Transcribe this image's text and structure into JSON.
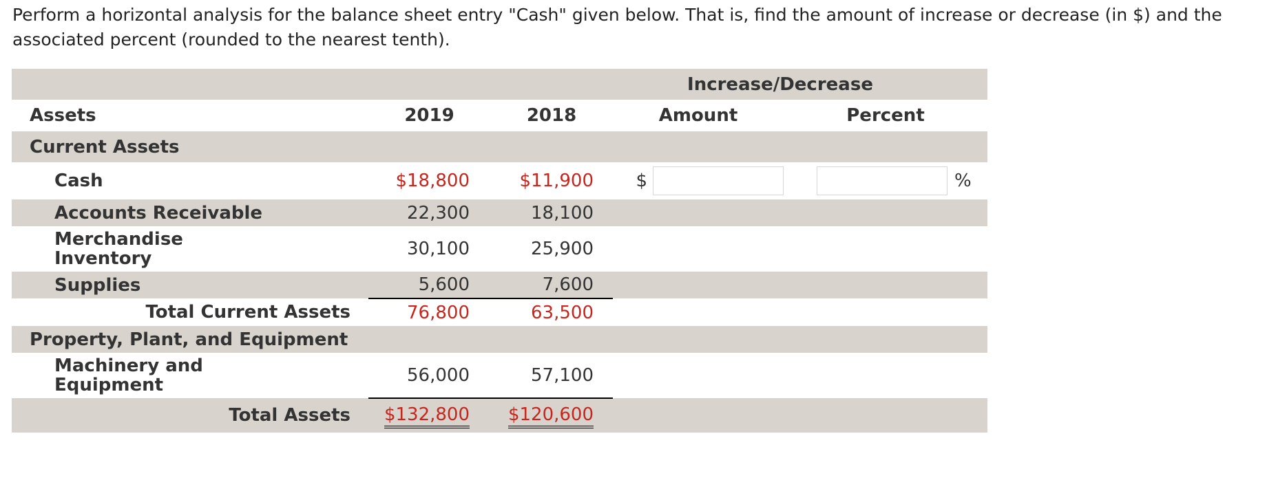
{
  "question": "Perform a horizontal analysis for the balance sheet entry \"Cash\" given below. That is, find the amount of increase or decrease (in $) and the associated percent (rounded to the nearest tenth).",
  "header": {
    "group": "Increase/Decrease",
    "assets": "Assets",
    "y2019": "2019",
    "y2018": "2018",
    "amount": "Amount",
    "percent": "Percent"
  },
  "sections": {
    "current_assets": "Current Assets",
    "ppe": "Property, Plant, and Equipment"
  },
  "rows": {
    "cash": {
      "label": "Cash",
      "v2019": "$18,800",
      "v2018": "$11,900"
    },
    "ar": {
      "label": "Accounts Receivable",
      "v2019": "22,300",
      "v2018": "18,100"
    },
    "merch": {
      "label": "Merchandise Inventory",
      "v2019": "30,100",
      "v2018": "25,900"
    },
    "supplies": {
      "label": "Supplies",
      "v2019": "5,600",
      "v2018": "7,600"
    },
    "total_current": {
      "label": "Total Current Assets",
      "v2019": "76,800",
      "v2018": "63,500"
    },
    "machinery": {
      "label": "Machinery and Equipment",
      "v2019": "56,000",
      "v2018": "57,100"
    },
    "total_assets": {
      "label": "Total Assets",
      "v2019": "$132,800",
      "v2018": "$120,600"
    }
  },
  "answer": {
    "dollar_sign": "$",
    "percent_sign": "%",
    "amount_value": "",
    "percent_value": ""
  },
  "colors": {
    "highlight_red": "#c8261d",
    "row_shade": "#d8d3cc"
  }
}
